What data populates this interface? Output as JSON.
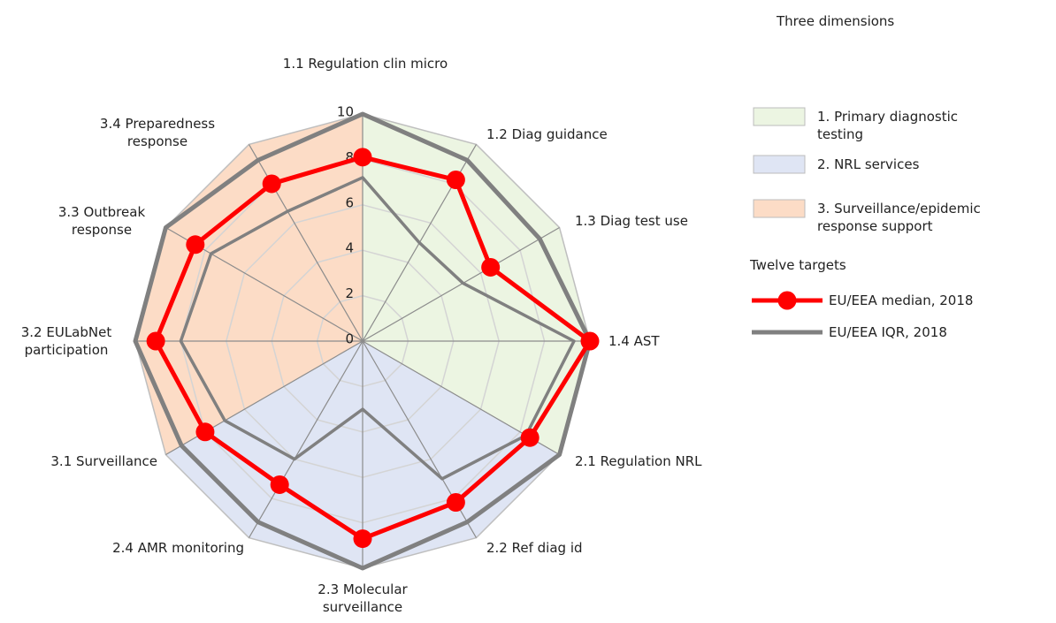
{
  "chart_data": {
    "type": "radar",
    "legend_title": "Three dimensions",
    "series_legend_title": "Twelve targets",
    "categories": [
      "1.1 Regulation clin micro",
      "1.2 Diag guidance",
      "1.3 Diag test use",
      "1.4 AST",
      "2.1 Regulation NRL",
      "2.2 Ref diag id",
      "2.3 Molecular surveillance",
      "2.4 AMR monitoring",
      "3.1 Surveillance",
      "3.2 EULabNet participation",
      "3.3 Outbreak response",
      "3.4 Preparedness response"
    ],
    "dimensions": [
      {
        "name": "1. Primary diagnostic testing",
        "color": "#ecf5e2"
      },
      {
        "name": "2. NRL services",
        "color": "#dfe5f4"
      },
      {
        "name": "3. Surveillance/epidemic response support",
        "color": "#fcdcc6"
      }
    ],
    "series": [
      {
        "name": "EU/EEA median, 2018",
        "color": "#ff0000",
        "values": [
          8.1,
          8.2,
          6.5,
          10,
          8.5,
          8.2,
          8.7,
          7.3,
          8,
          9.1,
          8.5,
          8
        ]
      },
      {
        "name": "EU/EEA IQR, 2018",
        "color": "#808080",
        "values": [
          10,
          9.2,
          9,
          10,
          10,
          9.2,
          10,
          9.2,
          9.2,
          10,
          10,
          9.2
        ],
        "lower": [
          7.2,
          5,
          5.1,
          9.3,
          8.3,
          7,
          3,
          6,
          7,
          8,
          7.7,
          6.6
        ]
      }
    ],
    "rlim": [
      0,
      10
    ],
    "rticks": [
      0,
      2,
      4,
      6,
      8,
      10
    ],
    "grid": true
  }
}
